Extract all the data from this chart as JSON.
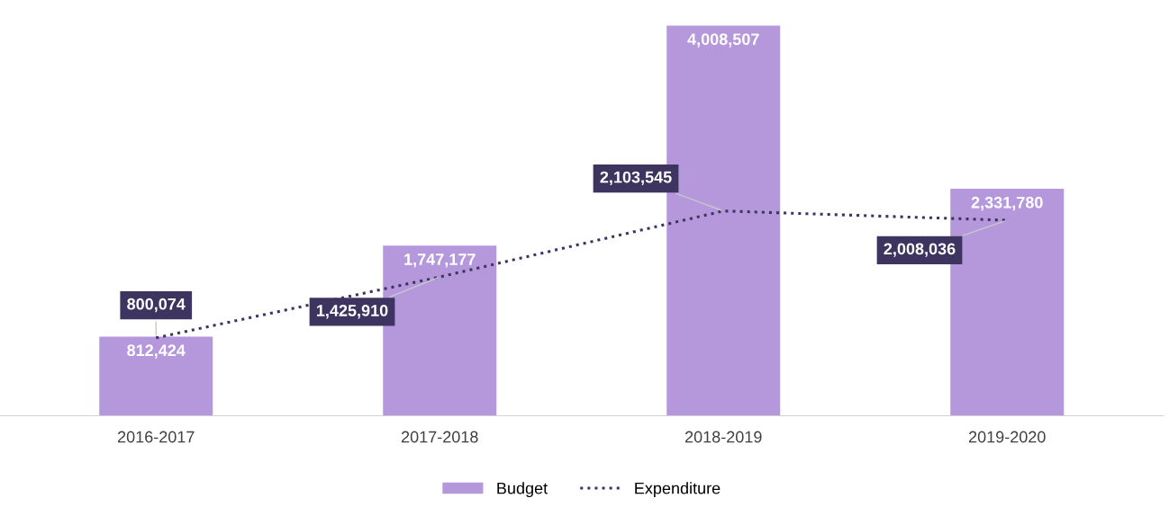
{
  "chart_data": {
    "type": "bar",
    "categories": [
      "2016-2017",
      "2017-2018",
      "2018-2019",
      "2019-2020"
    ],
    "series": [
      {
        "name": "Budget",
        "color": "#b598dc",
        "values": [
          812424,
          1747177,
          4008507,
          2331780
        ],
        "value_labels": [
          "812,424",
          "1,747,177",
          "4,008,507",
          "2,331,780"
        ]
      },
      {
        "name": "Expenditure",
        "type": "line",
        "color": "#3d3560",
        "line_style": "dotted",
        "values": [
          800074,
          1425910,
          2103545,
          2008036
        ],
        "value_labels": [
          "800,074",
          "1,425,910",
          "2,103,545",
          "2,008,036"
        ]
      }
    ],
    "legend": "bottom"
  }
}
